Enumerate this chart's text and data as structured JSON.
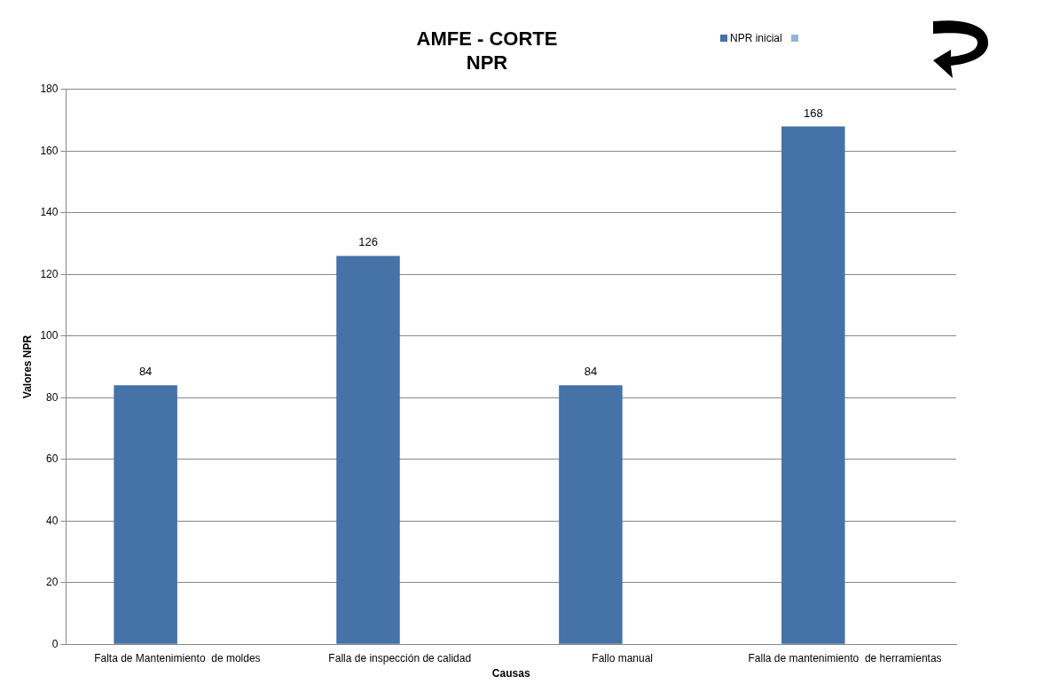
{
  "chart_data": {
    "type": "bar",
    "title": "AMFE - CORTE",
    "subtitle": "NPR",
    "xlabel": "Causas",
    "ylabel": "Valores NPR",
    "categories": [
      "Falta de Mantenimiento  de moldes",
      "Falla de inspección de calidad",
      "Fallo manual",
      "Falla de mantenimiento  de herramientas"
    ],
    "series": [
      {
        "name": "NPR inicial",
        "color": "#4572a7",
        "values": [
          84,
          126,
          84,
          168
        ]
      },
      {
        "color": "#95b3d7",
        "values": [
          null,
          null,
          null,
          null
        ]
      }
    ],
    "ylim": [
      0,
      180
    ],
    "yticks": [
      0,
      20,
      40,
      60,
      80,
      100,
      120,
      140,
      160,
      180
    ],
    "grid": "y",
    "legend": "top",
    "data_labels": true
  }
}
